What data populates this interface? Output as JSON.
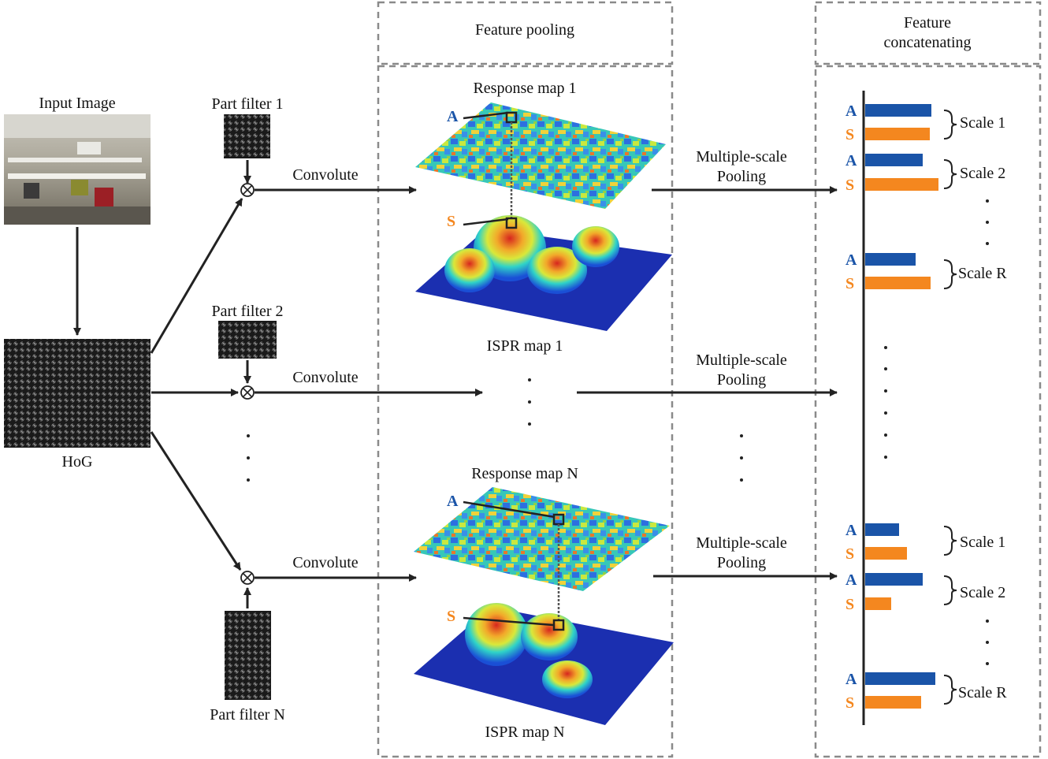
{
  "sections": {
    "feature_pooling": "Feature pooling",
    "feature_concat_line1": "Feature",
    "feature_concat_line2": "concatenating"
  },
  "input": {
    "input_image": "Input Image",
    "hog": "HoG"
  },
  "filters": [
    "Part filter 1",
    "Part filter 2",
    "Part filter N"
  ],
  "ops": {
    "convolute": "Convolute",
    "pool_line1": "Multiple-scale",
    "pool_line2": "Pooling"
  },
  "maps": {
    "response_1": "Response map 1",
    "ispr_1": "ISPR map 1",
    "response_n": "Response map N",
    "ispr_n": "ISPR map N"
  },
  "tags": {
    "a": "A",
    "s": "S"
  },
  "scales": {
    "s1": "Scale 1",
    "s2": "Scale 2",
    "sr": "Scale R"
  },
  "bars": {
    "group1": [
      {
        "tag": "A",
        "value": 0.84
      },
      {
        "tag": "S",
        "value": 0.82
      },
      {
        "tag": "A",
        "value": 0.73
      },
      {
        "tag": "S",
        "value": 0.93
      },
      {
        "tag": "A",
        "value": 0.64
      },
      {
        "tag": "S",
        "value": 0.83
      }
    ],
    "groupN": [
      {
        "tag": "A",
        "value": 0.43
      },
      {
        "tag": "S",
        "value": 0.53
      },
      {
        "tag": "A",
        "value": 0.73
      },
      {
        "tag": "S",
        "value": 0.33
      },
      {
        "tag": "A",
        "value": 0.89
      },
      {
        "tag": "S",
        "value": 0.71
      }
    ]
  },
  "colors": {
    "a_bar": "#1a54a8",
    "s_bar": "#f4871f",
    "line": "#222222",
    "dashed": "#8a8a8a"
  }
}
